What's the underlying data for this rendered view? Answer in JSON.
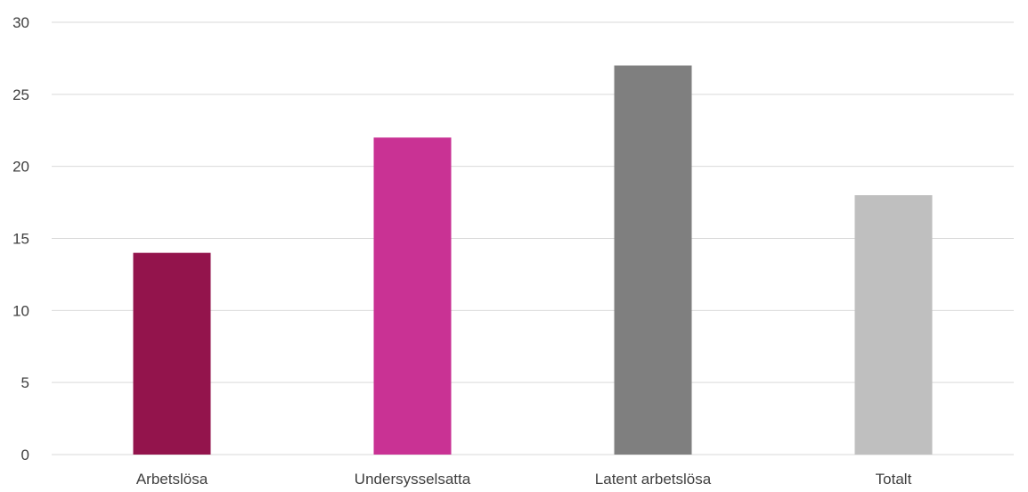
{
  "chart_data": {
    "type": "bar",
    "categories": [
      "Arbetslösa",
      "Undersysselsatta",
      "Latent arbetslösa",
      "Totalt"
    ],
    "values": [
      14,
      22,
      27,
      18
    ],
    "colors": [
      "#93144c",
      "#c93294",
      "#7f7f7f",
      "#bfbfbf"
    ],
    "ylim": [
      0,
      30
    ],
    "yticks": [
      0,
      5,
      10,
      15,
      20,
      25,
      30
    ],
    "grid": true,
    "gridColor": "#d9d9d9",
    "legend": "none"
  }
}
